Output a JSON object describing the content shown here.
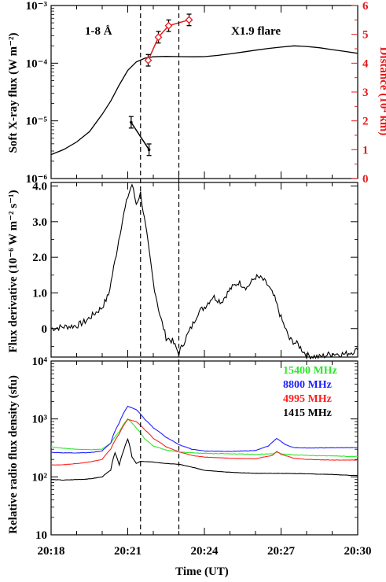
{
  "colors": {
    "frame": "#000000",
    "distance": "#e41a1c",
    "green": "#2ee62e",
    "blue": "#1f1fff",
    "red": "#ff2020",
    "black": "#000000"
  },
  "chart_data": [
    {
      "type": "line",
      "panel": "top",
      "ylabel": "Soft X-ray flux (W m⁻²)",
      "yscale": "log",
      "ylim": [
        1e-06,
        0.001
      ],
      "ytick_labels": [
        "10⁻⁶",
        "10⁻⁵",
        "10⁻⁴",
        "10⁻³"
      ],
      "y2label": "Distance (10⁴ km)",
      "y2lim": [
        0,
        6
      ],
      "y2tick_labels": [
        "0",
        "1",
        "2",
        "3",
        "4",
        "5",
        "6"
      ],
      "xlim": [
        "20:18",
        "20:30"
      ],
      "annotations": [
        "1-8 Å",
        "X1.9 flare"
      ],
      "series": [
        {
          "style": "line-black",
          "x": [
            "20:18:00",
            "20:18:30",
            "20:19:00",
            "20:19:30",
            "20:20:00",
            "20:20:20",
            "20:20:40",
            "20:21:00",
            "20:21:20",
            "20:21:40",
            "20:22:00",
            "20:22:30",
            "20:23:00",
            "20:23:30",
            "20:24:00",
            "20:24:30",
            "20:25:00",
            "20:25:30",
            "20:26:00",
            "20:26:30",
            "20:27:00",
            "20:27:30",
            "20:28:00",
            "20:28:30",
            "20:29:00",
            "20:29:30",
            "20:30:00"
          ],
          "y": [
            2.6e-06,
            3.2e-06,
            4.3e-06,
            6.5e-06,
            1.3e-05,
            2.2e-05,
            4.2e-05,
            7.5e-05,
            0.000105,
            0.000122,
            0.000129,
            0.000131,
            0.00013,
            0.000129,
            0.00013,
            0.000136,
            0.000145,
            0.000156,
            0.000168,
            0.00018,
            0.00019,
            0.0002,
            0.000195,
            0.000185,
            0.000172,
            0.00016,
            0.000148
          ]
        },
        {
          "style": "distance-black",
          "axis": "right",
          "x": [
            "20:21:08",
            "20:21:50"
          ],
          "y": [
            1.95,
            1.0
          ],
          "yerr": [
            0.2,
            0.2
          ]
        },
        {
          "style": "distance-red",
          "axis": "right",
          "x": [
            "20:21:48",
            "20:22:12",
            "20:22:36",
            "20:23:24"
          ],
          "y": [
            4.1,
            4.9,
            5.3,
            5.5
          ],
          "yerr": [
            0.2,
            0.2,
            0.2,
            0.2
          ]
        }
      ]
    },
    {
      "type": "line",
      "panel": "middle",
      "ylabel": "Flux derivative (10⁻⁶ W m⁻² s⁻¹)",
      "ylim": [
        -0.8,
        4.1
      ],
      "ytick_values": [
        0,
        1.0,
        2.0,
        3.0,
        4.0
      ],
      "ytick_labels": [
        "0",
        "1.0",
        "2.0",
        "3.0",
        "4.0"
      ],
      "xlim": [
        "20:18",
        "20:30"
      ],
      "series": [
        {
          "style": "line-black",
          "x": [
            "20:18:00",
            "20:18:30",
            "20:19:00",
            "20:19:20",
            "20:19:40",
            "20:20:00",
            "20:20:15",
            "20:20:30",
            "20:20:45",
            "20:21:00",
            "20:21:10",
            "20:21:20",
            "20:21:30",
            "20:21:45",
            "20:22:00",
            "20:22:15",
            "20:22:30",
            "20:22:45",
            "20:23:00",
            "20:23:15",
            "20:23:30",
            "20:23:45",
            "20:24:00",
            "20:24:20",
            "20:24:40",
            "20:25:00",
            "20:25:20",
            "20:25:40",
            "20:26:00",
            "20:26:15",
            "20:26:30",
            "20:26:45",
            "20:27:00",
            "20:27:20",
            "20:27:40",
            "20:28:00",
            "20:28:30",
            "20:29:00",
            "20:29:30",
            "20:30:00"
          ],
          "y": [
            0.0,
            0.05,
            0.08,
            0.2,
            0.4,
            0.6,
            0.95,
            1.9,
            2.9,
            3.7,
            4.05,
            3.5,
            3.8,
            2.6,
            1.3,
            0.4,
            -0.25,
            -0.35,
            -0.7,
            -0.3,
            0.05,
            0.45,
            0.6,
            0.9,
            0.75,
            1.1,
            1.3,
            1.15,
            1.45,
            1.4,
            1.2,
            0.85,
            0.3,
            -0.3,
            -0.45,
            -0.75,
            -0.8,
            -0.7,
            -0.72,
            -0.6
          ]
        }
      ]
    },
    {
      "type": "line",
      "panel": "bottom",
      "ylabel": "Relative radio flux density (sfu)",
      "yscale": "log",
      "ylim": [
        10,
        10000
      ],
      "ytick_labels": [
        "10",
        "10²",
        "10³",
        "10⁴"
      ],
      "xlabel": "Time (UT)",
      "xlim": [
        "20:18",
        "20:30"
      ],
      "x_tick_labels": [
        "20:18",
        "20:21",
        "20:24",
        "20:27",
        "20:30"
      ],
      "vlines": [
        "20:21:30",
        "20:23:00"
      ],
      "series": [
        {
          "name": "15400 MHz",
          "color_key": "green",
          "x": [
            "20:18:00",
            "20:18:30",
            "20:19:00",
            "20:19:30",
            "20:20:00",
            "20:20:20",
            "20:20:40",
            "20:21:00",
            "20:21:20",
            "20:21:40",
            "20:22:00",
            "20:22:30",
            "20:23:00",
            "20:23:30",
            "20:24:00",
            "20:25:00",
            "20:26:00",
            "20:26:40",
            "20:26:50",
            "20:27:00",
            "20:27:30",
            "20:28:00",
            "20:29:00",
            "20:30:00"
          ],
          "y": [
            330,
            310,
            300,
            295,
            300,
            380,
            600,
            1000,
            700,
            450,
            340,
            290,
            270,
            260,
            255,
            250,
            245,
            250,
            270,
            250,
            240,
            235,
            230,
            225
          ]
        },
        {
          "name": "8800 MHz",
          "color_key": "blue",
          "x": [
            "20:18:00",
            "20:18:30",
            "20:19:00",
            "20:19:30",
            "20:20:00",
            "20:20:20",
            "20:20:40",
            "20:21:00",
            "20:21:20",
            "20:21:40",
            "20:22:00",
            "20:22:30",
            "20:23:00",
            "20:23:30",
            "20:24:00",
            "20:25:00",
            "20:26:00",
            "20:26:30",
            "20:26:50",
            "20:27:10",
            "20:27:30",
            "20:28:00",
            "20:29:00",
            "20:30:00"
          ],
          "y": [
            265,
            260,
            258,
            262,
            280,
            380,
            850,
            1650,
            1450,
            980,
            700,
            480,
            360,
            300,
            280,
            275,
            285,
            340,
            460,
            360,
            320,
            315,
            318,
            320
          ]
        },
        {
          "name": "4995 MHz",
          "color_key": "red",
          "x": [
            "20:18:00",
            "20:18:30",
            "20:19:00",
            "20:19:30",
            "20:20:00",
            "20:20:20",
            "20:20:40",
            "20:21:00",
            "20:21:20",
            "20:21:40",
            "20:22:00",
            "20:22:30",
            "20:23:00",
            "20:23:30",
            "20:24:00",
            "20:25:00",
            "20:26:00",
            "20:26:40",
            "20:26:50",
            "20:27:00",
            "20:27:30",
            "20:28:00",
            "20:29:00",
            "20:30:00"
          ],
          "y": [
            160,
            162,
            170,
            180,
            200,
            300,
            550,
            980,
            900,
            650,
            460,
            330,
            270,
            235,
            220,
            210,
            205,
            235,
            275,
            245,
            210,
            200,
            195,
            195
          ]
        },
        {
          "name": "1415 MHz",
          "color_key": "black",
          "x": [
            "20:18:00",
            "20:18:30",
            "20:19:00",
            "20:19:30",
            "20:20:00",
            "20:20:20",
            "20:20:30",
            "20:20:40",
            "20:20:50",
            "20:21:00",
            "20:21:10",
            "20:21:20",
            "20:21:30",
            "20:22:00",
            "20:22:30",
            "20:23:00",
            "20:24:00",
            "20:25:00",
            "20:26:00",
            "20:27:00",
            "20:28:00",
            "20:29:00",
            "20:30:00"
          ],
          "y": [
            90,
            88,
            90,
            92,
            100,
            130,
            260,
            160,
            280,
            450,
            220,
            170,
            185,
            180,
            170,
            165,
            130,
            120,
            115,
            115,
            113,
            110,
            105
          ]
        }
      ]
    }
  ]
}
